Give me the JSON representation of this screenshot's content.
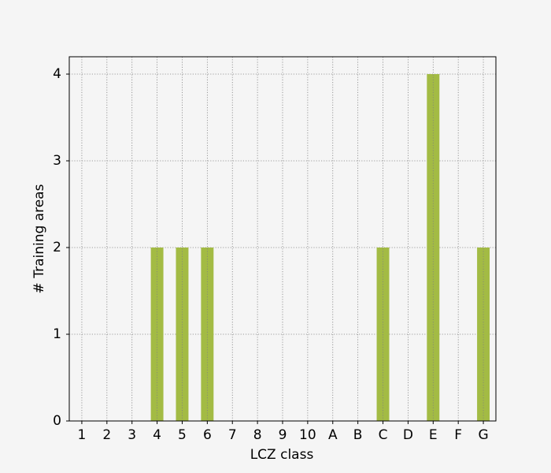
{
  "chart_data": {
    "type": "bar",
    "xlabel": "LCZ class",
    "ylabel": "# Training areas",
    "categories": [
      "1",
      "2",
      "3",
      "4",
      "5",
      "6",
      "7",
      "8",
      "9",
      "10",
      "A",
      "B",
      "C",
      "D",
      "E",
      "F",
      "G"
    ],
    "values": [
      0,
      0,
      0,
      2,
      2,
      2,
      0,
      0,
      0,
      0,
      0,
      0,
      2,
      0,
      4,
      0,
      2
    ],
    "color": "#a3bb44",
    "ylim": [
      0,
      4.2
    ],
    "yticks": [
      0,
      1,
      2,
      3,
      4
    ],
    "grid": true
  }
}
